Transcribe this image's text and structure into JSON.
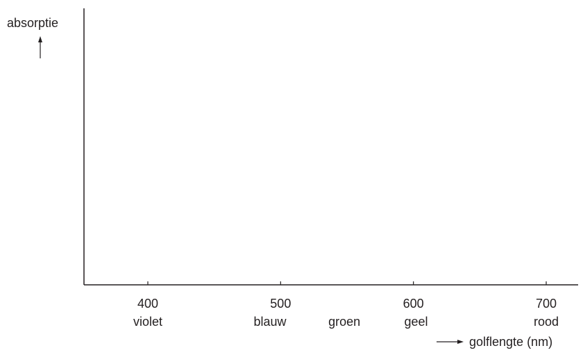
{
  "chart_data": {
    "type": "line",
    "title": "",
    "ylabel": "absorptie",
    "xlabel": "golflengte (nm)",
    "x_ticks": [
      400,
      500,
      600,
      700
    ],
    "x_tick_labels": [
      "400",
      "500",
      "600",
      "700"
    ],
    "color_bands": [
      {
        "label": "violet",
        "x": 400
      },
      {
        "label": "blauw",
        "x": 492
      },
      {
        "label": "groen",
        "x": 548
      },
      {
        "label": "geel",
        "x": 602
      },
      {
        "label": "rood",
        "x": 700
      }
    ],
    "xlim": [
      350,
      725
    ],
    "grid": false,
    "legend": "none",
    "series": []
  },
  "colors": {
    "ink": "#231f20"
  }
}
